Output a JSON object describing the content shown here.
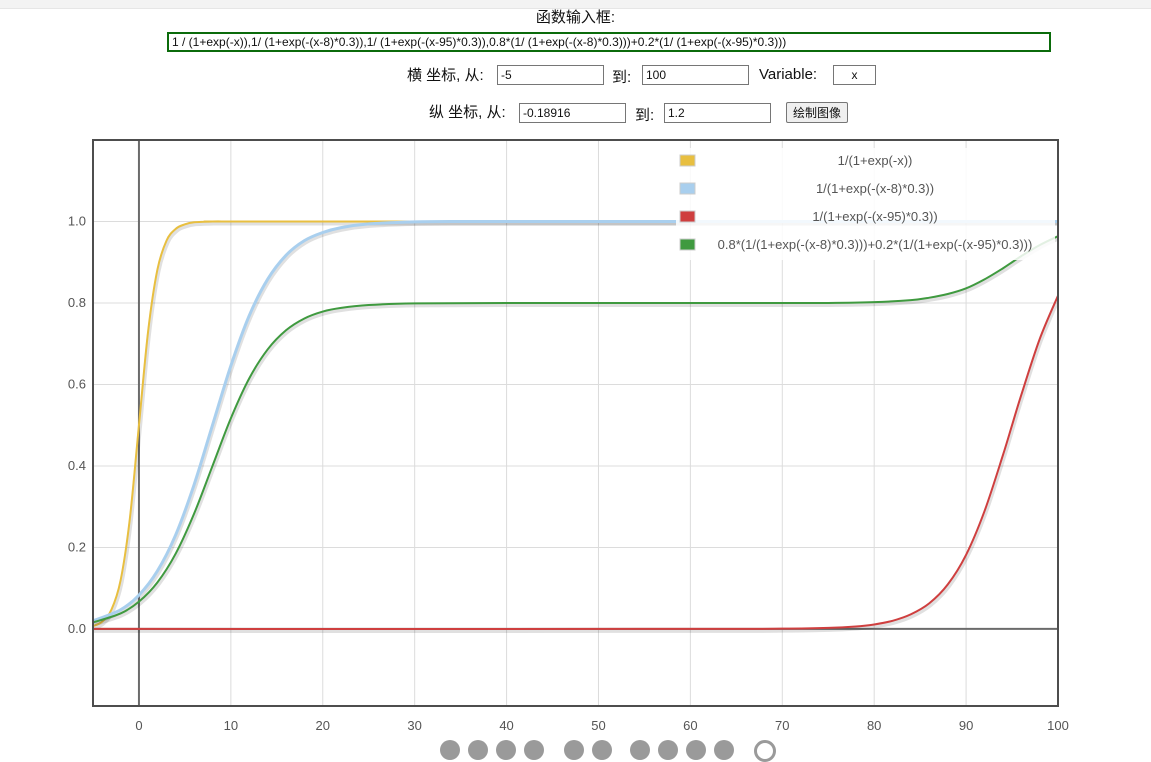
{
  "header": {
    "title": "函数输入框:",
    "function_input": "1 / (1+exp(-x)),1/ (1+exp(-(x-8)*0.3)),1/ (1+exp(-(x-95)*0.3)),0.8*(1/ (1+exp(-(x-8)*0.3)))+0.2*(1/ (1+exp(-(x-95)*0.3)))"
  },
  "controls": {
    "x_axis_label": "横 坐标, 从:",
    "x_from": "-5",
    "to_label": "到:",
    "x_to": "100",
    "variable_label": "Variable:",
    "variable": "x",
    "y_axis_label": "纵 坐标, 从:",
    "y_from": "-0.18916",
    "y_to_label": "到:",
    "y_to": "1.2",
    "plot_button": "绘制图像"
  },
  "toolbar": {
    "icons": [
      "pan-up-icon",
      "pan-down-icon",
      "zoom-in-icon",
      "zoom-out-icon",
      "pan-left-icon",
      "pan-right-icon",
      "zoom-box-icon",
      "reset-icon",
      "select-icon",
      "export-icon",
      "settings-icon"
    ]
  },
  "chart_data": {
    "type": "line",
    "xlim": [
      -5,
      100
    ],
    "ylim": [
      -0.18916,
      1.2
    ],
    "xticks": [
      "0",
      "10",
      "20",
      "30",
      "40",
      "50",
      "60",
      "70",
      "80",
      "90",
      "100"
    ],
    "yticks": [
      "0.0",
      "0.2",
      "0.4",
      "0.6",
      "0.8",
      "1.0"
    ],
    "grid": true,
    "legend_position": "top-right",
    "series": [
      {
        "name": "1/(1+exp(-x))",
        "color": "#e8bf40",
        "x": [
          -5,
          -4,
          -3,
          -2,
          -1,
          0,
          1,
          2,
          3,
          4,
          5,
          6,
          8,
          10,
          15,
          100
        ],
        "y": [
          0.0067,
          0.018,
          0.047,
          0.119,
          0.269,
          0.5,
          0.731,
          0.881,
          0.953,
          0.982,
          0.993,
          0.998,
          1.0,
          1.0,
          1.0,
          1.0
        ]
      },
      {
        "name": "1/(1+exp(-(x-8)*0.3))",
        "color": "#a9cfee",
        "x": [
          -5,
          -2,
          0,
          2,
          4,
          6,
          8,
          10,
          12,
          14,
          16,
          18,
          20,
          22,
          25,
          30,
          35,
          40,
          100
        ],
        "y": [
          0.0198,
          0.047,
          0.083,
          0.142,
          0.231,
          0.354,
          0.5,
          0.646,
          0.769,
          0.858,
          0.917,
          0.953,
          0.973,
          0.985,
          0.994,
          0.999,
          1.0,
          1.0,
          1.0
        ]
      },
      {
        "name": "1/(1+exp(-(x-95)*0.3))",
        "color": "#cf3f3f",
        "x": [
          -5,
          60,
          70,
          75,
          78,
          80,
          82,
          84,
          86,
          88,
          90,
          92,
          94,
          95,
          96,
          98,
          100
        ],
        "y": [
          0.0,
          0.0,
          0.0006,
          0.0025,
          0.006,
          0.011,
          0.02,
          0.036,
          0.063,
          0.109,
          0.182,
          0.289,
          0.426,
          0.5,
          0.574,
          0.711,
          0.818
        ]
      },
      {
        "name": "0.8*(1/(1+exp(-(x-8)*0.3)))+0.2*(1/(1+exp(-(x-95)*0.3)))",
        "color": "#3f9a3f",
        "x": [
          -5,
          -2,
          0,
          2,
          4,
          6,
          8,
          10,
          12,
          14,
          16,
          18,
          20,
          22,
          25,
          30,
          40,
          60,
          70,
          75,
          80,
          84,
          86,
          88,
          90,
          92,
          94,
          95,
          96,
          98,
          100
        ],
        "y": [
          0.016,
          0.038,
          0.067,
          0.114,
          0.185,
          0.283,
          0.4,
          0.517,
          0.615,
          0.686,
          0.733,
          0.762,
          0.779,
          0.788,
          0.795,
          0.799,
          0.8,
          0.8,
          0.8,
          0.8,
          0.802,
          0.807,
          0.813,
          0.822,
          0.836,
          0.858,
          0.885,
          0.9,
          0.915,
          0.942,
          0.964
        ]
      }
    ]
  }
}
